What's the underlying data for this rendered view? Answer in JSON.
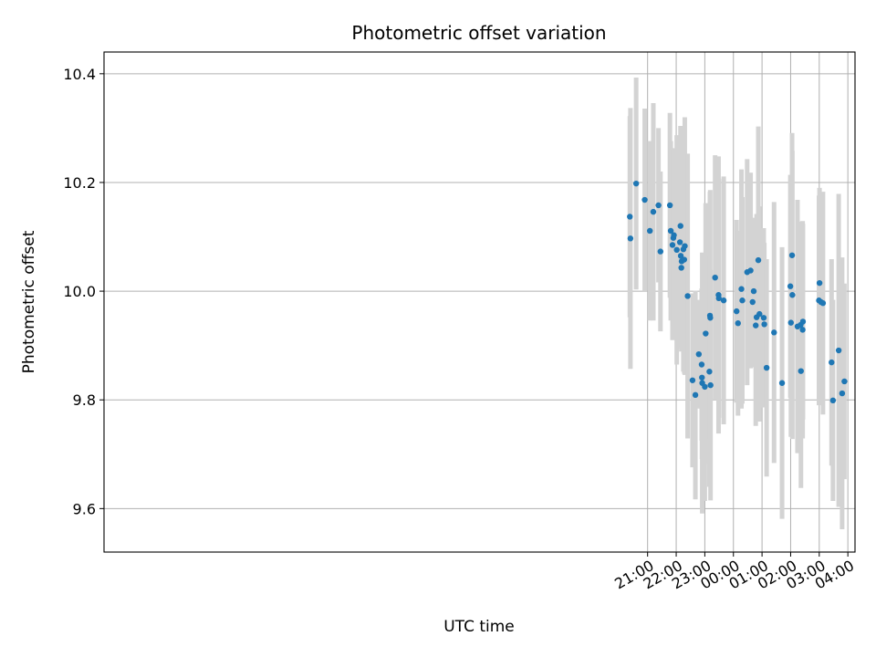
{
  "chart_data": {
    "type": "scatter",
    "title": "Photometric offset variation",
    "xlabel": "UTC time",
    "ylabel": "Photometric offset",
    "x_unit": "hours since 00:00 UTC",
    "xlim": [
      -22.0,
      4.25
    ],
    "ylim": [
      9.52,
      10.44
    ],
    "y_ticks": [
      9.6,
      9.8,
      10.0,
      10.2,
      10.4
    ],
    "y_tick_labels": [
      "9.6",
      "9.8",
      "10.0",
      "10.2",
      "10.4"
    ],
    "x_ticks": [
      -3,
      -2,
      -1,
      0,
      1,
      2,
      3,
      4
    ],
    "x_tick_labels": [
      "21:00",
      "22:00",
      "23:00",
      "00:00",
      "01:00",
      "02:00",
      "03:00",
      "04:00"
    ],
    "grid": true,
    "colors": {
      "point": "#1f77b4",
      "errorbar": "#d3d3d3",
      "grid": "#b0b0b0",
      "axes": "#000000"
    },
    "points": [
      {
        "x": -3.62,
        "y": 10.137,
        "yerr": 0.185
      },
      {
        "x": -3.6,
        "y": 10.097,
        "yerr": 0.24
      },
      {
        "x": -3.4,
        "y": 10.198,
        "yerr": 0.195
      },
      {
        "x": -3.1,
        "y": 10.168,
        "yerr": 0.168
      },
      {
        "x": -2.92,
        "y": 10.111,
        "yerr": 0.165
      },
      {
        "x": -2.8,
        "y": 10.146,
        "yerr": 0.2
      },
      {
        "x": -2.62,
        "y": 10.158,
        "yerr": 0.142
      },
      {
        "x": -2.55,
        "y": 10.073,
        "yerr": 0.147
      },
      {
        "x": -2.22,
        "y": 10.158,
        "yerr": 0.17
      },
      {
        "x": -2.19,
        "y": 10.111,
        "yerr": 0.165
      },
      {
        "x": -2.13,
        "y": 10.085,
        "yerr": 0.175
      },
      {
        "x": -2.1,
        "y": 10.098,
        "yerr": 0.162
      },
      {
        "x": -2.08,
        "y": 10.103,
        "yerr": 0.16
      },
      {
        "x": -1.98,
        "y": 10.076,
        "yerr": 0.211
      },
      {
        "x": -1.87,
        "y": 10.09,
        "yerr": 0.182
      },
      {
        "x": -1.85,
        "y": 10.12,
        "yerr": 0.184
      },
      {
        "x": -1.84,
        "y": 10.065,
        "yerr": 0.17
      },
      {
        "x": -1.82,
        "y": 10.043,
        "yerr": 0.154
      },
      {
        "x": -1.81,
        "y": 10.055,
        "yerr": 0.164
      },
      {
        "x": -1.75,
        "y": 10.077,
        "yerr": 0.225
      },
      {
        "x": -1.72,
        "y": 10.058,
        "yerr": 0.21
      },
      {
        "x": -1.7,
        "y": 10.083,
        "yerr": 0.237
      },
      {
        "x": -1.6,
        "y": 9.991,
        "yerr": 0.262
      },
      {
        "x": -1.43,
        "y": 9.836,
        "yerr": 0.16
      },
      {
        "x": -1.33,
        "y": 9.809,
        "yerr": 0.192
      },
      {
        "x": -1.21,
        "y": 9.884,
        "yerr": 0.1
      },
      {
        "x": -1.11,
        "y": 9.865,
        "yerr": 0.14
      },
      {
        "x": -1.1,
        "y": 9.841,
        "yerr": 0.15
      },
      {
        "x": -1.09,
        "y": 9.831,
        "yerr": 0.24
      },
      {
        "x": -1.0,
        "y": 9.824,
        "yerr": 0.21
      },
      {
        "x": -0.97,
        "y": 9.922,
        "yerr": 0.24
      },
      {
        "x": -0.84,
        "y": 9.852,
        "yerr": 0.212
      },
      {
        "x": -0.82,
        "y": 9.955,
        "yerr": 0.228
      },
      {
        "x": -0.81,
        "y": 9.951,
        "yerr": 0.235
      },
      {
        "x": -0.8,
        "y": 9.827,
        "yerr": 0.212
      },
      {
        "x": -0.64,
        "y": 10.025,
        "yerr": 0.225
      },
      {
        "x": -0.52,
        "y": 9.993,
        "yerr": 0.255
      },
      {
        "x": -0.51,
        "y": 9.987,
        "yerr": 0.22
      },
      {
        "x": -0.34,
        "y": 9.983,
        "yerr": 0.228
      },
      {
        "x": 0.11,
        "y": 9.963,
        "yerr": 0.168
      },
      {
        "x": 0.16,
        "y": 9.941,
        "yerr": 0.17
      },
      {
        "x": 0.28,
        "y": 10.004,
        "yerr": 0.22
      },
      {
        "x": 0.31,
        "y": 9.983,
        "yerr": 0.19
      },
      {
        "x": 0.48,
        "y": 10.035,
        "yerr": 0.208
      },
      {
        "x": 0.6,
        "y": 10.038,
        "yerr": 0.18
      },
      {
        "x": 0.67,
        "y": 9.98,
        "yerr": 0.12
      },
      {
        "x": 0.71,
        "y": 10.0,
        "yerr": 0.135
      },
      {
        "x": 0.78,
        "y": 9.937,
        "yerr": 0.185
      },
      {
        "x": 0.81,
        "y": 9.952,
        "yerr": 0.19
      },
      {
        "x": 0.87,
        "y": 10.057,
        "yerr": 0.246
      },
      {
        "x": 0.91,
        "y": 9.958,
        "yerr": 0.198
      },
      {
        "x": 1.06,
        "y": 9.951,
        "yerr": 0.165
      },
      {
        "x": 1.08,
        "y": 9.939,
        "yerr": 0.15
      },
      {
        "x": 1.16,
        "y": 9.859,
        "yerr": 0.2
      },
      {
        "x": 1.42,
        "y": 9.924,
        "yerr": 0.24
      },
      {
        "x": 1.7,
        "y": 9.831,
        "yerr": 0.25
      },
      {
        "x": 1.99,
        "y": 10.009,
        "yerr": 0.205
      },
      {
        "x": 2.01,
        "y": 9.942,
        "yerr": 0.21
      },
      {
        "x": 2.05,
        "y": 10.066,
        "yerr": 0.225
      },
      {
        "x": 2.06,
        "y": 9.993,
        "yerr": 0.265
      },
      {
        "x": 2.24,
        "y": 9.935,
        "yerr": 0.233
      },
      {
        "x": 2.35,
        "y": 9.938,
        "yerr": 0.19
      },
      {
        "x": 2.36,
        "y": 9.853,
        "yerr": 0.215
      },
      {
        "x": 2.42,
        "y": 9.929,
        "yerr": 0.2
      },
      {
        "x": 2.43,
        "y": 9.944,
        "yerr": 0.18
      },
      {
        "x": 2.99,
        "y": 9.983,
        "yerr": 0.193
      },
      {
        "x": 3.01,
        "y": 10.015,
        "yerr": 0.175
      },
      {
        "x": 3.06,
        "y": 9.98,
        "yerr": 0.18
      },
      {
        "x": 3.13,
        "y": 9.978,
        "yerr": 0.205
      },
      {
        "x": 3.43,
        "y": 9.869,
        "yerr": 0.19
      },
      {
        "x": 3.48,
        "y": 9.799,
        "yerr": 0.185
      },
      {
        "x": 3.68,
        "y": 9.891,
        "yerr": 0.288
      },
      {
        "x": 3.8,
        "y": 9.812,
        "yerr": 0.25
      },
      {
        "x": 3.88,
        "y": 9.834,
        "yerr": 0.18
      }
    ]
  }
}
